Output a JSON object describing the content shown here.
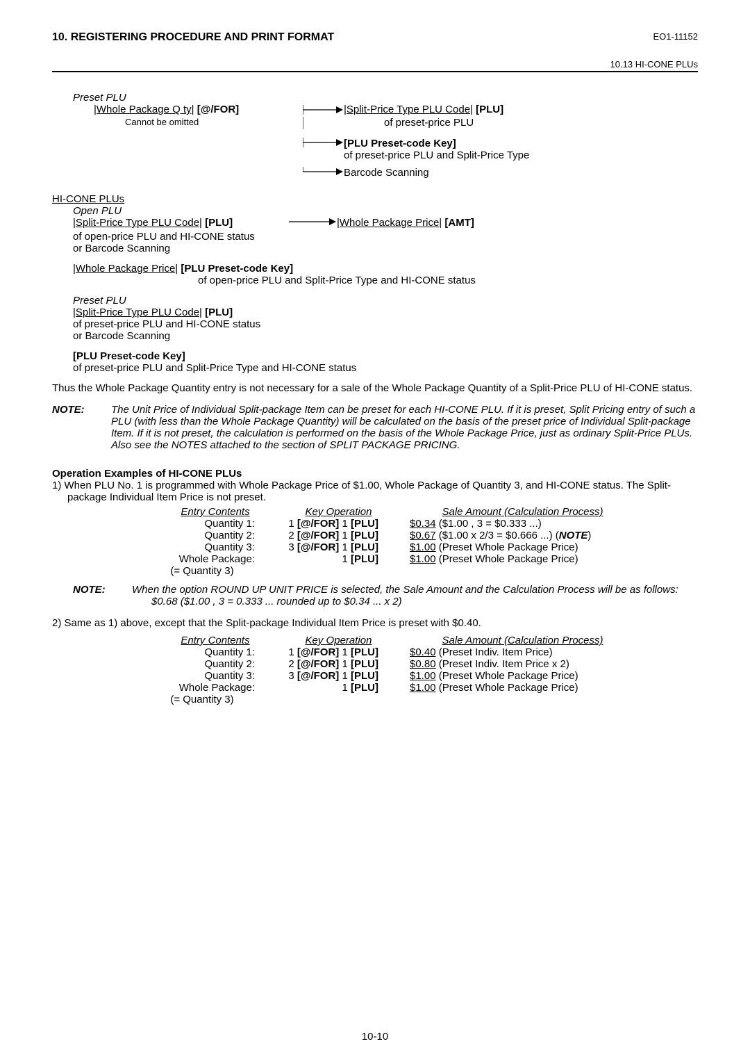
{
  "header": {
    "title": "10. REGISTERING PROCEDURE AND PRINT FORMAT",
    "code": "EO1-11152",
    "sectionRef": "10.13 HI-CONE PLUs"
  },
  "diagram1": {
    "presetPlu": "Preset PLU",
    "wholePkgQty": "|Whole Package Q ty|",
    "atFor": " [@/FOR]",
    "cannotOmit": "Cannot be omitted",
    "splitPriceCode": "|Split-Price Type PLU Code|",
    "pluTag": " [PLU]",
    "ofPresetPlu": "of preset-price PLU",
    "pluPresetKey": "[PLU Preset-code Key]",
    "ofPresetAndSplit": "of preset-price PLU and Split-Price Type",
    "barcodeScanning": "Barcode Scanning"
  },
  "hiCone": {
    "title": "HI-CONE PLUs",
    "openPlu": "Open PLU",
    "splitPriceCode": "|Split-Price Type PLU Code|",
    "pluTag": " [PLU]",
    "ofOpenPlu": "of open-price PLU and HI-CONE status",
    "orBarcode": "or Barcode Scanning",
    "wholePkgPrice": "|Whole Package Price|",
    "amtTag": " [AMT]",
    "wholePkgPrice2": "|Whole Package Price|",
    "pluPresetKey": " [PLU Preset-code Key]",
    "ofOpenSplitHi": "of open-price PLU and Split-Price Type and HI-CONE status",
    "presetPlu": "Preset PLU",
    "ofPresetHi": "of preset-price PLU and HI-CONE status",
    "pluPresetKey2": "[PLU Preset-code Key]",
    "ofPresetSplitHi": "of preset-price PLU and Split-Price Type and HI-CONE status"
  },
  "paragraph1": "Thus the  Whole Package Quantity  entry is not necessary for a sale of the Whole Package Quantity of a Split-Price PLU of HI-CONE status.",
  "note1": {
    "label": "NOTE:",
    "text": "The Unit Price of Individual Split-package Item can be preset for each HI-CONE PLU.  If it is preset, Split Pricing entry of such a PLU (with less than the Whole Package Quantity) will be calculated on the basis of the preset price of Individual Split-package Item.  If it is not preset, the calculation is performed on the basis of the Whole Package Price, just as ordinary Split-Price PLUs.  Also see the NOTES attached to the section of SPLIT PACKAGE PRICING."
  },
  "opExamples": {
    "title": "Operation Examples of HI-CONE PLUs",
    "ex1Intro": "1)  When PLU No. 1 is programmed with Whole Package Price of $1.00, Whole Package of Quantity 3, and HI-CONE status. The Split-package Individual Item Price is not preset.",
    "headers": {
      "entry": "Entry Contents",
      "key": "Key Operation",
      "amount": "Sale Amount (Calculation Process)"
    },
    "table1": [
      {
        "entry": "Quantity 1:",
        "key1": "1",
        "key2": " [@/FOR] ",
        "key3": "1",
        "key4": " [PLU]",
        "amtU": "$0.34",
        "amtR": " ($1.00 ,  3 = $0.333 ...)",
        "note": ""
      },
      {
        "entry": "Quantity 2:",
        "key1": "2",
        "key2": " [@/FOR] ",
        "key3": "1",
        "key4": " [PLU]",
        "amtU": "$0.67",
        "amtR": " ($1.00 x 2/3 = $0.666 ...) (",
        "note": "NOTE",
        "noteSuffix": ")"
      },
      {
        "entry": "Quantity 3:",
        "key1": "3",
        "key2": " [@/FOR] ",
        "key3": "1",
        "key4": " [PLU]",
        "amtU": "$1.00",
        "amtR": " (Preset Whole Package Price)",
        "note": ""
      },
      {
        "entry": "Whole Package:",
        "key1": "",
        "key2": "",
        "key3": "1",
        "key4": " [PLU]",
        "amtU": "$1.00",
        "amtR": " (Preset Whole Package Price)",
        "note": ""
      }
    ],
    "eqQty3": "(= Quantity 3)",
    "note2": {
      "label": "NOTE:",
      "text1": "When the option  ROUND UP UNIT PRICE  is selected, the Sale Amount and the Calculation Process will be as follows:",
      "text2": "$0.68 ($1.00 ,  3 = 0.333 ... rounded up to $0.34 ... x 2)"
    },
    "ex2Intro": "2)  Same as 1) above, except that the Split-package Individual Item Price is preset with $0.40.",
    "table2": [
      {
        "entry": "Quantity 1:",
        "key1": "1",
        "key2": " [@/FOR] ",
        "key3": "1",
        "key4": " [PLU]",
        "amtU": "$0.40",
        "amtR": " (Preset Indiv. Item Price)"
      },
      {
        "entry": "Quantity 2:",
        "key1": "2",
        "key2": " [@/FOR] ",
        "key3": "1",
        "key4": " [PLU]",
        "amtU": "$0.80",
        "amtR": " (Preset Indiv. Item Price x 2)"
      },
      {
        "entry": "Quantity 3:",
        "key1": "3",
        "key2": " [@/FOR] ",
        "key3": "1",
        "key4": " [PLU]",
        "amtU": "$1.00",
        "amtR": " (Preset Whole Package Price)"
      },
      {
        "entry": "Whole Package:",
        "key1": "",
        "key2": "",
        "key3": "1",
        "key4": " [PLU]",
        "amtU": "$1.00",
        "amtR": " (Preset Whole Package Price)"
      }
    ]
  },
  "pageNum": "10-10"
}
